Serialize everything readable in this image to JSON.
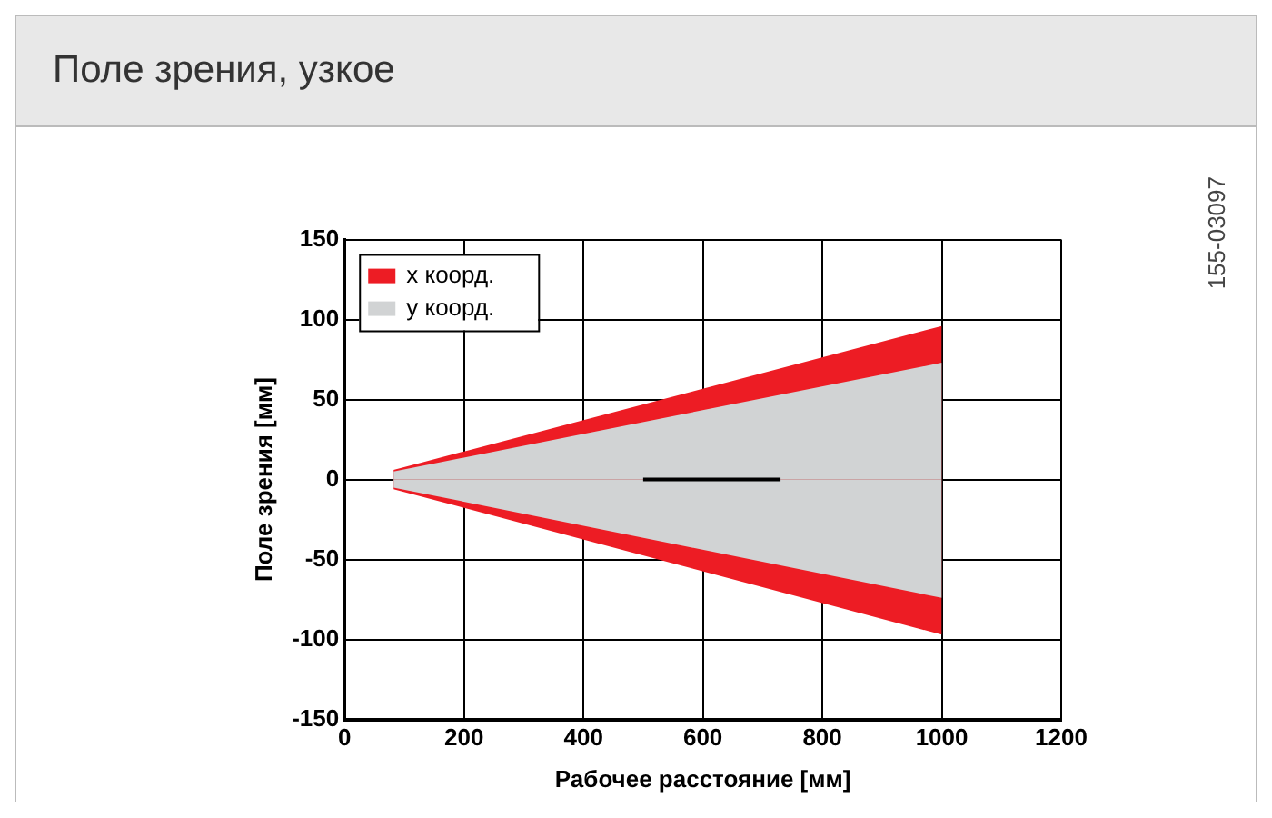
{
  "chart_data": {
    "type": "area",
    "title": "Поле зрения, узкое",
    "xlabel": "Рабочее расстояние [мм]",
    "ylabel": "Поле зрения [мм]",
    "xlim": [
      0,
      1200
    ],
    "xticks": [
      0,
      200,
      400,
      600,
      800,
      1000,
      1200
    ],
    "ylim": [
      -150,
      150
    ],
    "yticks": [
      -150,
      -100,
      -50,
      0,
      50,
      100,
      150
    ],
    "grid": true,
    "legend": "top left",
    "annotations": [
      "155-03097"
    ],
    "series": [
      {
        "name": "x коорд.",
        "color": "#ed1c24",
        "x": [
          82,
          1000
        ],
        "values": [
          6,
          96
        ]
      },
      {
        "color": "#ed1c24",
        "x": [
          82,
          1000
        ],
        "values": [
          -6,
          -97
        ]
      },
      {
        "name": "y коорд.",
        "color": "#d1d3d4",
        "x": [
          82,
          1000
        ],
        "values": [
          5,
          73
        ]
      },
      {
        "color": "#d1d3d4",
        "x": [
          82,
          1000
        ],
        "values": [
          -5,
          -74
        ]
      },
      {
        "color": "#000000",
        "type": "line",
        "x": [
          500,
          730
        ],
        "values": [
          0,
          0
        ]
      }
    ]
  }
}
